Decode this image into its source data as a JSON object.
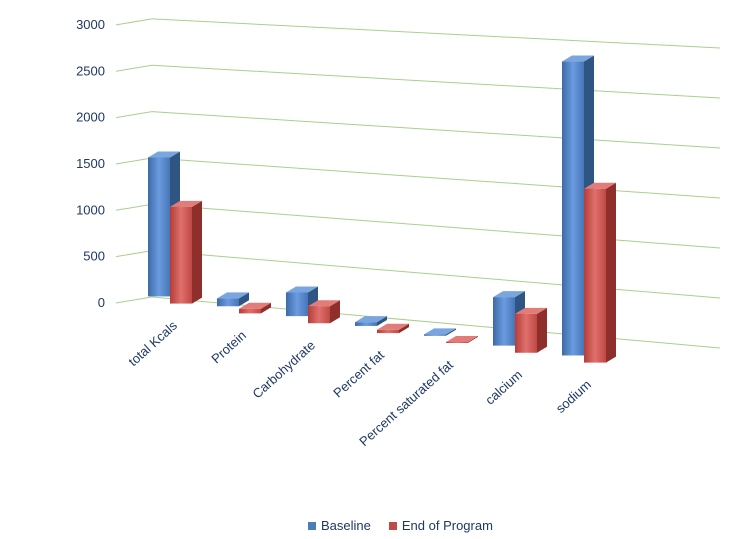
{
  "chart_data": {
    "type": "bar",
    "categories": [
      "total Kcals",
      "Protein",
      "Carbohydrate",
      "Percent fat",
      "Percent saturated fat",
      "calcium",
      "sodium"
    ],
    "series": [
      {
        "name": "Baseline",
        "values": [
          1500,
          85,
          250,
          40,
          15,
          500,
          3000
        ],
        "color": "#4a7ebb"
      },
      {
        "name": "End of Program",
        "values": [
          1040,
          50,
          180,
          35,
          10,
          400,
          1770
        ],
        "color": "#be4b48"
      }
    ],
    "y_ticks": [
      "0",
      "500",
      "1000",
      "1500",
      "2000",
      "2500",
      "3000"
    ],
    "ylim": [
      0,
      3000
    ],
    "grid": true,
    "legend": "bottom",
    "style": "3d-column"
  }
}
